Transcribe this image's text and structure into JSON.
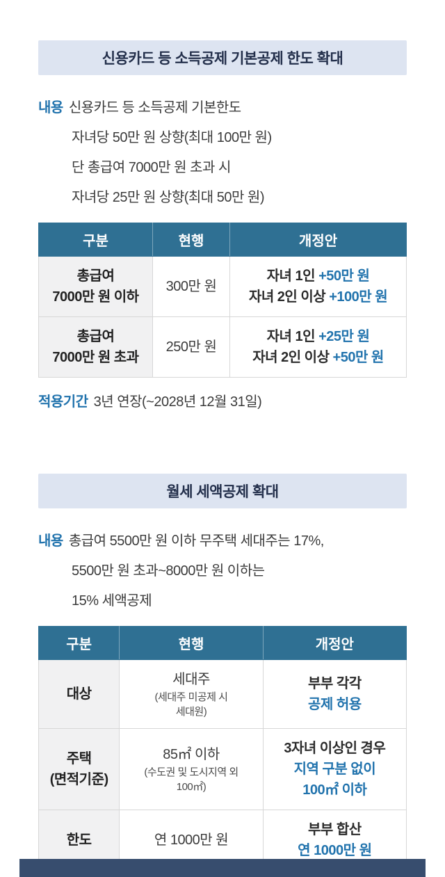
{
  "colors": {
    "accent_blue": "#2173ad",
    "table_header_bg": "#2f7093",
    "banner_bg": "#dde4f1",
    "category_cell_bg": "#f1f1f2",
    "footer_bar_bg": "#374d6e"
  },
  "section1": {
    "title": "신용카드 등 소득공제 기본공제 한도 확대",
    "label": "내용",
    "line1": "신용카드 등 소득공제 기본한도",
    "line2": "자녀당 50만 원 상향(최대 100만 원)",
    "line3": "단 총급여 7000만 원 초과 시",
    "line4": "자녀당 25만 원 상향(최대 50만 원)",
    "table": {
      "col_category": "구분",
      "col_current": "현행",
      "col_revised": "개정안",
      "rows": [
        {
          "category1": "총급여",
          "category2": "7000만 원 이하",
          "current": "300만 원",
          "rev1_text": "자녀 1인 ",
          "rev1_value": "+50만 원",
          "rev2_text": "자녀 2인 이상 ",
          "rev2_value": "+100만 원"
        },
        {
          "category1": "총급여",
          "category2": "7000만 원 초과",
          "current": "250만 원",
          "rev1_text": "자녀 1인 ",
          "rev1_value": "+25만 원",
          "rev2_text": "자녀 2인 이상 ",
          "rev2_value": "+50만 원"
        }
      ]
    },
    "period_label": "적용기간",
    "period_text": "3년 연장(~2028년 12월 31일)"
  },
  "section2": {
    "title": "월세 세액공제 확대",
    "label": "내용",
    "line1": "총급여 5500만 원 이하 무주택 세대주는 17%,",
    "line2": "5500만 원 초과~8000만 원 이하는",
    "line3": "15% 세액공제",
    "table": {
      "col_category": "구분",
      "col_current": "현행",
      "col_revised": "개정안",
      "row_target": {
        "category": "대상",
        "current_main": "세대주",
        "current_sub1": "(세대주 미공제 시",
        "current_sub2": "세대원)",
        "revised_line1": "부부 각각",
        "revised_line2": "공제 허용"
      },
      "row_housing": {
        "category1": "주택",
        "category2": "(면적기준)",
        "current_main": "85㎡ 이하",
        "current_sub1": "(수도권 및 도시지역 외",
        "current_sub2": "100㎡)",
        "revised_line1": "3자녀 이상인 경우",
        "revised_line2": "지역 구분 없이",
        "revised_line3": "100㎡ 이하"
      },
      "row_limit": {
        "category": "한도",
        "current": "연 1000만 원",
        "revised_line1": "부부 합산",
        "revised_line2": "연 1000만 원"
      }
    }
  }
}
